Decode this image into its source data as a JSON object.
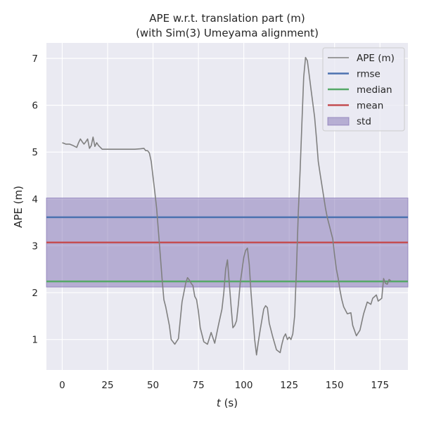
{
  "chart_data": {
    "type": "line",
    "title": "APE w.r.t. translation part (m)",
    "subtitle": "(with Sim(3) Umeyama alignment)",
    "xlabel": "t (s)",
    "xlabel_var": "t",
    "xlabel_unit": " (s)",
    "ylabel": "APE (m)",
    "xlim": [
      -8.7,
      190.4
    ],
    "ylim": [
      0.35,
      7.33
    ],
    "xticks": [
      0,
      25,
      50,
      75,
      100,
      125,
      150,
      175
    ],
    "yticks": [
      1,
      2,
      3,
      4,
      5,
      6,
      7
    ],
    "grid": true,
    "legend_position": "top-right",
    "background_color": "#eaeaf2",
    "series": [
      {
        "name": "APE (m)",
        "color": "#808080",
        "x": [
          0,
          2,
          4,
          6,
          8,
          9,
          10,
          11,
          12,
          13,
          14,
          15,
          16,
          17,
          18,
          19,
          20,
          22,
          25,
          30,
          35,
          40,
          43,
          45,
          46,
          47,
          48,
          49,
          50,
          51,
          52,
          53,
          54,
          55,
          56,
          57,
          58,
          59,
          60,
          62,
          64,
          66,
          68,
          69,
          70,
          71,
          72,
          73,
          74,
          75,
          76,
          78,
          80,
          82,
          84,
          86,
          88,
          89,
          90,
          91,
          92,
          93,
          94,
          95,
          96,
          97,
          98,
          100,
          101,
          102,
          103,
          104,
          105,
          106,
          107,
          108,
          109,
          110,
          111,
          112,
          113,
          114,
          116,
          118,
          119,
          120,
          121,
          122,
          123,
          124,
          125,
          126,
          127,
          128,
          129,
          130,
          131,
          132,
          133,
          134,
          135,
          136,
          137,
          138,
          139,
          140,
          141,
          142,
          143,
          144,
          145,
          146,
          147,
          148,
          149,
          150,
          151,
          152,
          153,
          154,
          155,
          157,
          159,
          160,
          162,
          164,
          166,
          168,
          170,
          171,
          173,
          174,
          176,
          177,
          178,
          179,
          180,
          181
        ],
        "y": [
          5.2,
          5.17,
          5.17,
          5.14,
          5.1,
          5.2,
          5.28,
          5.22,
          5.17,
          5.22,
          5.28,
          5.08,
          5.14,
          5.32,
          5.12,
          5.2,
          5.14,
          5.06,
          5.06,
          5.06,
          5.06,
          5.06,
          5.07,
          5.08,
          5.03,
          5.03,
          4.98,
          4.8,
          4.48,
          4.15,
          3.8,
          3.3,
          2.8,
          2.3,
          1.85,
          1.7,
          1.5,
          1.3,
          1.0,
          0.9,
          1.02,
          1.8,
          2.2,
          2.32,
          2.27,
          2.2,
          2.15,
          1.92,
          1.85,
          1.6,
          1.25,
          0.95,
          0.9,
          1.15,
          0.92,
          1.3,
          1.65,
          2.0,
          2.5,
          2.7,
          2.2,
          1.7,
          1.25,
          1.3,
          1.4,
          1.75,
          2.2,
          2.75,
          2.9,
          2.95,
          2.6,
          2.0,
          1.5,
          1.0,
          0.67,
          0.95,
          1.2,
          1.42,
          1.65,
          1.72,
          1.68,
          1.35,
          1.05,
          0.78,
          0.75,
          0.72,
          0.9,
          1.05,
          1.12,
          1.0,
          1.05,
          1.0,
          1.12,
          1.5,
          2.5,
          3.7,
          4.6,
          5.6,
          6.6,
          7.02,
          6.95,
          6.65,
          6.35,
          6.05,
          5.75,
          5.3,
          4.8,
          4.55,
          4.3,
          4.05,
          3.8,
          3.6,
          3.45,
          3.3,
          3.15,
          2.8,
          2.5,
          2.3,
          2.05,
          1.85,
          1.7,
          1.55,
          1.57,
          1.3,
          1.08,
          1.2,
          1.55,
          1.8,
          1.75,
          1.88,
          1.95,
          1.82,
          1.88,
          2.3,
          2.2,
          2.18,
          2.28,
          2.25
        ]
      }
    ],
    "stats": [
      {
        "name": "rmse",
        "value": 3.61,
        "color": "#4c72b0"
      },
      {
        "name": "median",
        "value": 2.24,
        "color": "#55a868"
      },
      {
        "name": "mean",
        "value": 3.07,
        "color": "#c44e52"
      }
    ],
    "std_band": {
      "name": "std",
      "lower": 2.12,
      "upper": 4.02,
      "color": "#8172b3"
    }
  }
}
